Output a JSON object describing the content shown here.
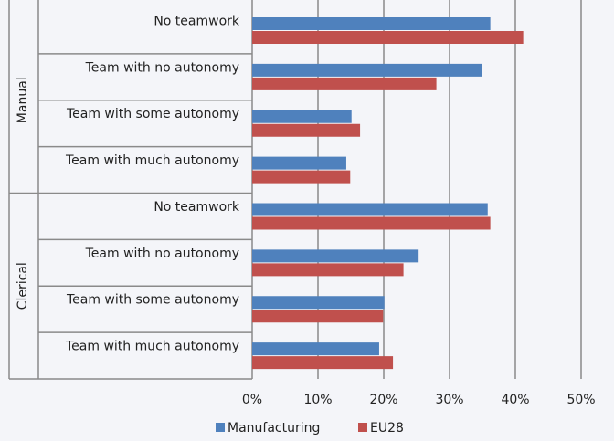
{
  "chart_data": {
    "type": "bar",
    "orientation": "horizontal",
    "groups": [
      {
        "name": "Manual",
        "categories": [
          "No teamwork",
          "Team with no autonomy",
          "Team with some autonomy",
          "Team with much autonomy"
        ]
      },
      {
        "name": "Clerical",
        "categories": [
          "No teamwork",
          "Team with no autonomy",
          "Team with some autonomy",
          "Team with much autonomy"
        ]
      }
    ],
    "series": [
      {
        "name": "Manufacturing",
        "color": "#4f81bd",
        "values": [
          36.2,
          34.9,
          15.1,
          14.3,
          35.8,
          25.3,
          20.1,
          19.3
        ]
      },
      {
        "name": "EU28",
        "color": "#c0504d",
        "values": [
          41.2,
          28,
          16.4,
          14.9,
          36.2,
          23,
          19.9,
          21.4
        ]
      }
    ],
    "xlim": [
      0,
      50
    ],
    "xticks": [
      {
        "value": 0,
        "label": "0%"
      },
      {
        "value": 10,
        "label": "10%"
      },
      {
        "value": 20,
        "label": "20%"
      },
      {
        "value": 30,
        "label": "30%"
      },
      {
        "value": 40,
        "label": "40%"
      },
      {
        "value": 50,
        "label": "50%"
      }
    ],
    "grid": true,
    "legend": "bottom"
  }
}
